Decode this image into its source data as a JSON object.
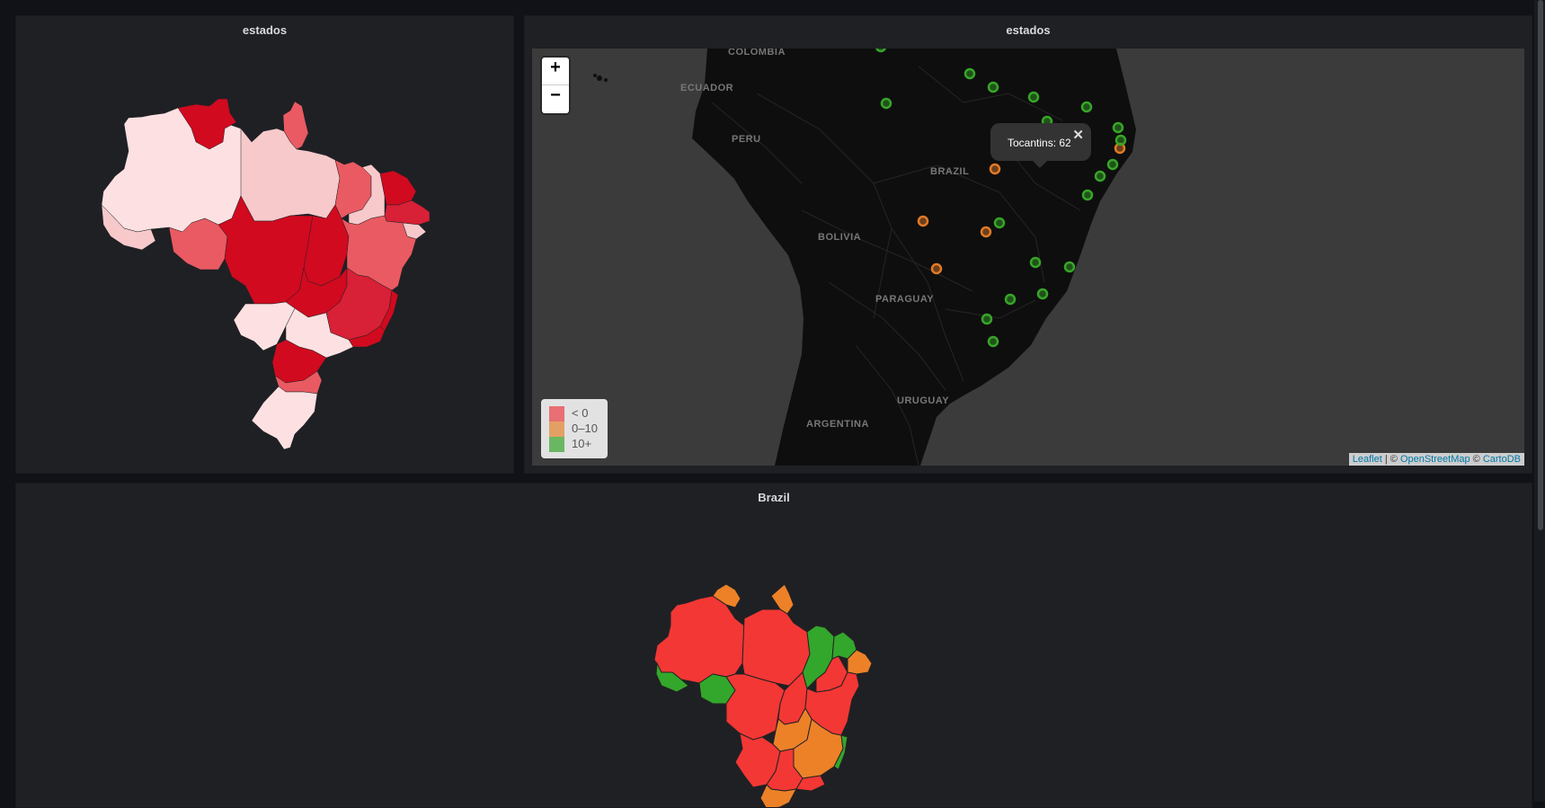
{
  "panels": {
    "left": {
      "title": "estados"
    },
    "right": {
      "title": "estados"
    },
    "bottom": {
      "title": "Brazil"
    }
  },
  "map": {
    "zoom_in": "+",
    "zoom_out": "−",
    "popup": {
      "text": "Tocantins: 62",
      "close": "✕"
    },
    "country_labels": [
      "COLOMBIA",
      "ECUADOR",
      "PERU",
      "BRAZIL",
      "BOLIVIA",
      "PARAGUAY",
      "URUGUAY",
      "ARGENTINA"
    ],
    "legend": [
      {
        "label": "< 0",
        "color": "#e86f73"
      },
      {
        "label": "0–10",
        "color": "#e3a064"
      },
      {
        "label": "10+",
        "color": "#6ab761"
      }
    ],
    "attribution": {
      "leaflet": "Leaflet",
      "sep1": " | © ",
      "osm": "OpenStreetMap",
      "sep2": " © ",
      "carto": "CartoDB"
    },
    "markers": [
      {
        "status": "good"
      },
      {
        "status": "good"
      },
      {
        "status": "good"
      },
      {
        "status": "good"
      },
      {
        "status": "good"
      },
      {
        "status": "good"
      },
      {
        "status": "good"
      },
      {
        "status": "good"
      },
      {
        "status": "bad"
      },
      {
        "status": "good"
      },
      {
        "status": "good"
      },
      {
        "status": "good"
      },
      {
        "status": "bad"
      },
      {
        "status": "bad"
      },
      {
        "status": "bad"
      },
      {
        "status": "good"
      },
      {
        "status": "bad"
      },
      {
        "status": "good"
      },
      {
        "status": "good"
      },
      {
        "status": "good"
      },
      {
        "status": "good"
      },
      {
        "status": "good"
      },
      {
        "status": "good"
      },
      {
        "status": "good"
      }
    ],
    "colors": {
      "good": "#37a628",
      "bad": "#e07a28",
      "land": "#0e0e0e",
      "sea": "#3b3b3b"
    }
  },
  "choropleth": {
    "colors": {
      "darkest": "#d10a1f",
      "dark": "#d82036",
      "mid": "#ea5a62",
      "light": "#f7c9cb",
      "lightest": "#fde1e2"
    },
    "bottom_colors": {
      "red": "#f33735",
      "orange": "#ed8128",
      "green": "#33a72b"
    }
  }
}
